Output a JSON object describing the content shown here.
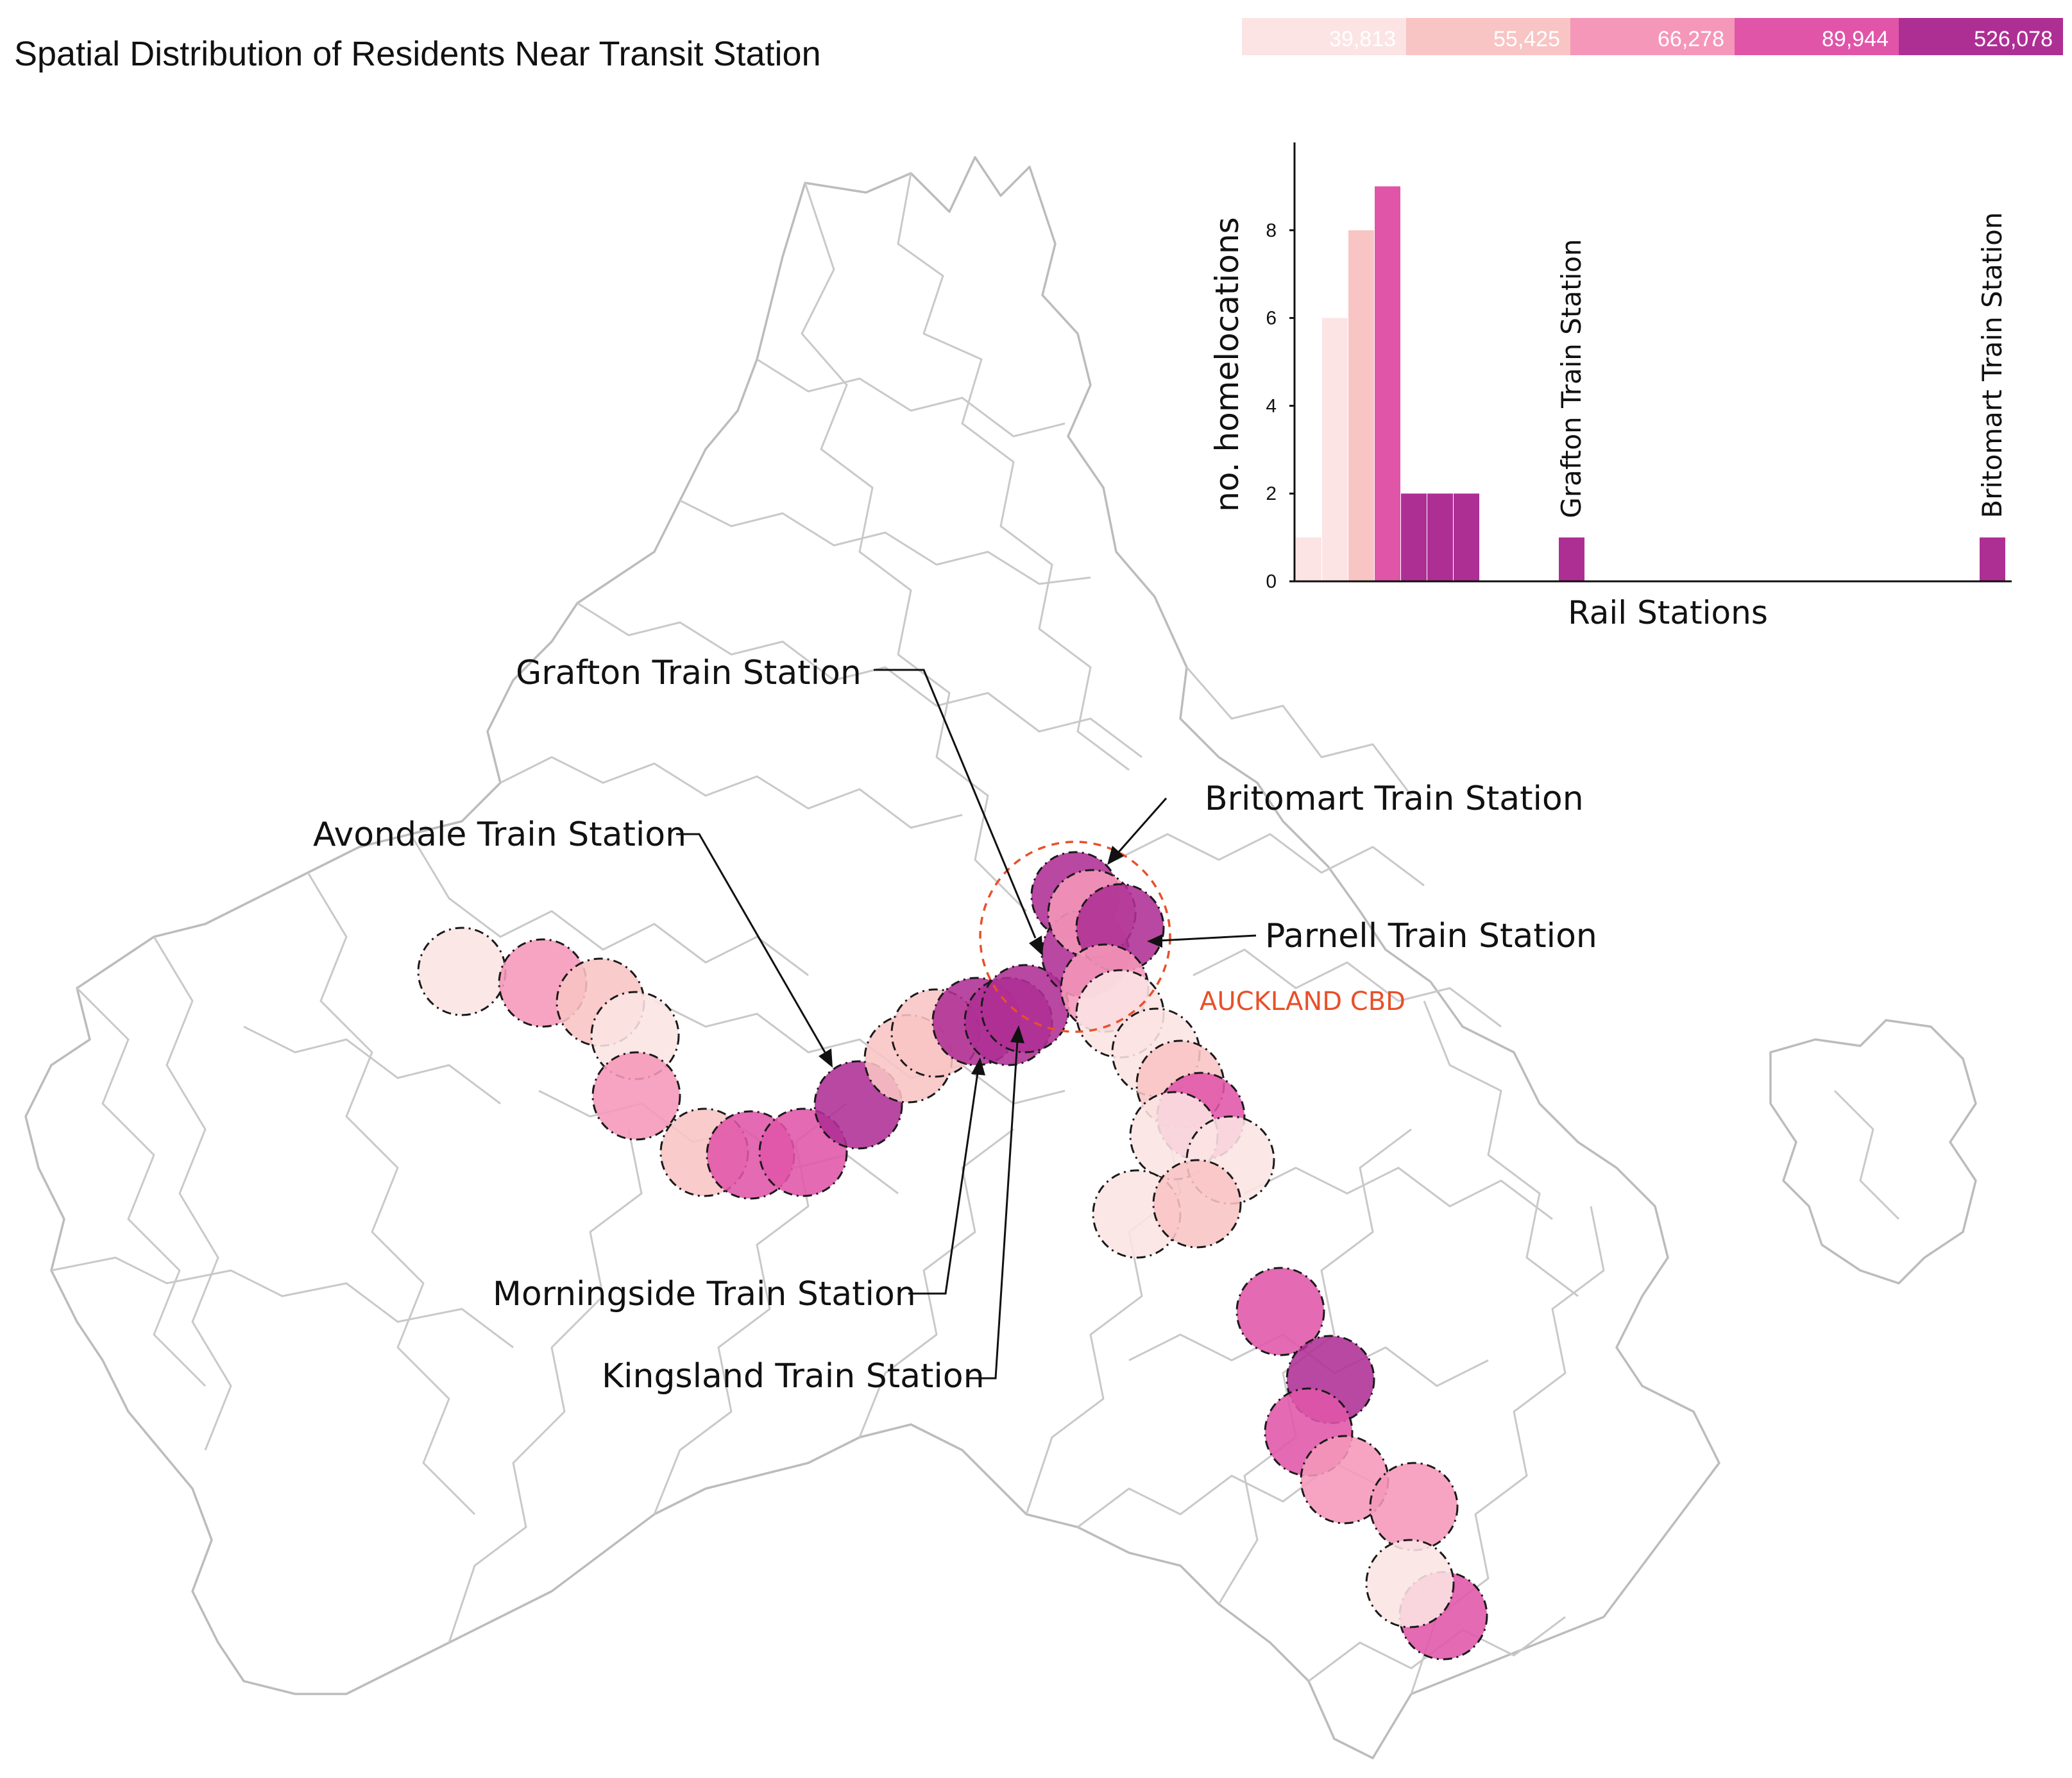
{
  "title": "Spatial Distribution of Residents Near Transit Station",
  "legend": {
    "breaks": [
      "39,813",
      "55,425",
      "66,278",
      "89,944",
      "526,078"
    ],
    "colors": [
      "#fce4e4",
      "#f9c4c4",
      "#f597b8",
      "#e055a8",
      "#ae2f94"
    ]
  },
  "map": {
    "cbd_label": "AUCKLAND CBD",
    "cbd_color": "#e8502a",
    "station_labels": {
      "grafton": "Grafton Train Station",
      "britomart": "Britomart Train Station",
      "parnell": "Parnell Train Station",
      "avondale": "Avondale Train Station",
      "morningside": "Morningside Train Station",
      "kingsland": "Kingsland Train Station"
    },
    "catchments": [
      {
        "class": 0
      },
      {
        "class": 2
      },
      {
        "class": 1
      },
      {
        "class": 0
      },
      {
        "class": 2
      },
      {
        "class": 1
      },
      {
        "class": 3
      },
      {
        "class": 3
      },
      {
        "class": 4
      },
      {
        "class": 1
      },
      {
        "class": 1
      },
      {
        "class": 4
      },
      {
        "class": 4
      },
      {
        "class": 4
      },
      {
        "class": 4
      },
      {
        "class": 4
      },
      {
        "class": 2
      },
      {
        "class": 4
      },
      {
        "class": 2
      },
      {
        "class": 0
      },
      {
        "class": 0
      },
      {
        "class": 1
      },
      {
        "class": 3
      },
      {
        "class": 0
      },
      {
        "class": 0
      },
      {
        "class": 0
      },
      {
        "class": 1
      },
      {
        "class": 3
      },
      {
        "class": 4
      },
      {
        "class": 3
      },
      {
        "class": 2
      },
      {
        "class": 2
      },
      {
        "class": 3
      },
      {
        "class": 0
      }
    ]
  },
  "chart_data": {
    "type": "bar",
    "ylabel": "no. homelocations",
    "xlabel": "Rail Stations",
    "yticks": [
      0,
      2,
      4,
      6,
      8
    ],
    "ylim": [
      0,
      10
    ],
    "bars": [
      {
        "position": 0,
        "value": 1,
        "color": "#fce4e4"
      },
      {
        "position": 1,
        "value": 6,
        "color": "#fce4e4"
      },
      {
        "position": 2,
        "value": 8,
        "color": "#f9c4c4"
      },
      {
        "position": 3,
        "value": 9,
        "color": "#e055a8"
      },
      {
        "position": 4,
        "value": 2,
        "color": "#ae2f94"
      },
      {
        "position": 5,
        "value": 2,
        "color": "#ae2f94"
      },
      {
        "position": 6,
        "value": 2,
        "color": "#ae2f94"
      },
      {
        "position": 10,
        "value": 1,
        "color": "#ae2f94",
        "label": "Grafton Train Station"
      },
      {
        "position": 26,
        "value": 1,
        "color": "#ae2f94",
        "label": "Britomart Train Station"
      }
    ]
  }
}
